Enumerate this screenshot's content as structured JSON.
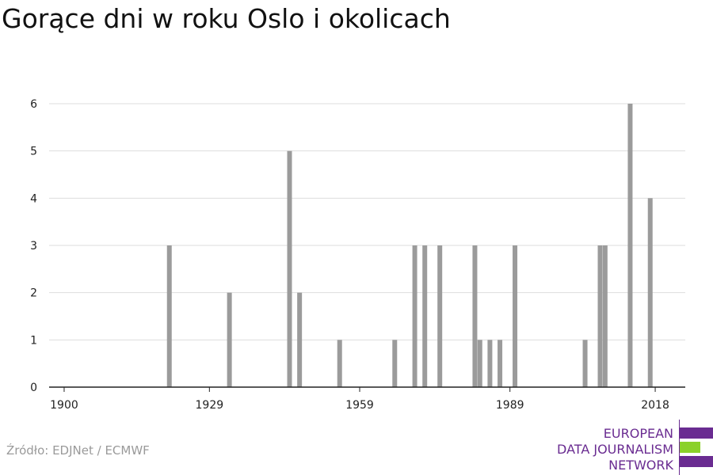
{
  "title": "Gorące dni w roku Oslo i okolicach",
  "source": "Źródło: EDJNet / ECMWF",
  "logo": {
    "lines": [
      "EUROPEAN",
      "DATA JOURNALISM",
      "NETWORK"
    ],
    "colors": {
      "purple": "#6a2c91",
      "green": "#8bd12a"
    }
  },
  "colors": {
    "bar": "#9b9b9b",
    "grid": "#dddddd",
    "axis": "#222222"
  },
  "chart_data": {
    "type": "bar",
    "title": "Gorące dni w roku Oslo i okolicach",
    "xlabel": "",
    "ylabel": "",
    "xlim": [
      1897,
      2024
    ],
    "ylim": [
      0,
      6
    ],
    "x_ticks": [
      1900,
      1929,
      1959,
      1989,
      2018
    ],
    "y_ticks": [
      0,
      1,
      2,
      3,
      4,
      5,
      6
    ],
    "grid": true,
    "x": [
      1921,
      1933,
      1945,
      1947,
      1955,
      1966,
      1970,
      1972,
      1975,
      1982,
      1983,
      1985,
      1987,
      1990,
      2004,
      2007,
      2008,
      2013,
      2017
    ],
    "values": [
      3,
      2,
      5,
      2,
      1,
      1,
      3,
      3,
      3,
      3,
      1,
      1,
      1,
      3,
      1,
      3,
      3,
      6,
      4
    ]
  }
}
